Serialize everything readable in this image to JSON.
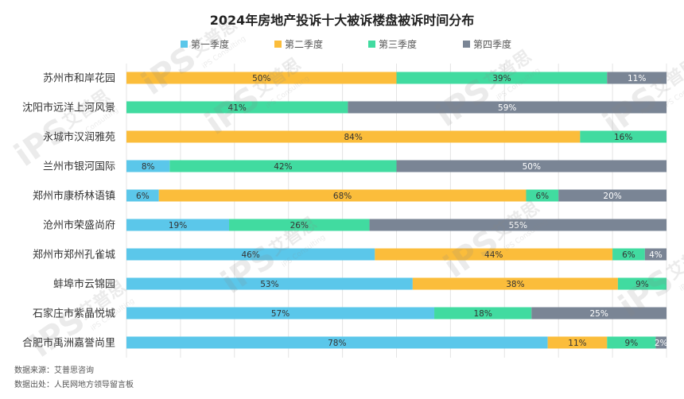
{
  "title": "2024年房地产投诉十大被诉楼盘被诉时间分布",
  "colors": {
    "q1": "#5bc7ea",
    "q2": "#fbbd3b",
    "q3": "#41dba0",
    "q4": "#7a8595"
  },
  "footer": {
    "source": "数据来源：艾普思咨询",
    "origin": "数据出处：人民网地方领导留言板"
  },
  "watermark": {
    "brand": "iPS",
    "name": "艾普思",
    "en": "iPS Consulting"
  },
  "chart_data": {
    "type": "bar",
    "orientation": "horizontal",
    "stacked": true,
    "unit": "%",
    "xlim": [
      0,
      100
    ],
    "grid": true,
    "legend_position": "top",
    "categories": [
      "苏州市和岸花园",
      "沈阳市远洋上河风景",
      "永城市汉润雅苑",
      "兰州市银河国际",
      "郑州市康桥林语镇",
      "沧州市荣盛尚府",
      "郑州市郑州孔雀城",
      "蚌埠市云锦园",
      "石家庄市紫晶悦城",
      "合肥市禹洲嘉誉尚里"
    ],
    "series": [
      {
        "name": "第一季度",
        "color": "#5bc7ea",
        "values": [
          0,
          0,
          0,
          8,
          6,
          19,
          46,
          53,
          57,
          78
        ],
        "labels": [
          "",
          "",
          "",
          "8%",
          "6%",
          "19%",
          "46%",
          "53%",
          "57%",
          "78%"
        ]
      },
      {
        "name": "第二季度",
        "color": "#fbbd3b",
        "values": [
          50,
          0,
          84,
          0,
          68,
          0,
          44,
          38,
          0,
          11
        ],
        "labels": [
          "50%",
          "",
          "84%",
          "",
          "68%",
          "",
          "44%",
          "38%",
          "",
          "11%"
        ]
      },
      {
        "name": "第三季度",
        "color": "#41dba0",
        "values": [
          39,
          41,
          16,
          42,
          6,
          26,
          6,
          9,
          18,
          9
        ],
        "labels": [
          "39%",
          "41%",
          "16%",
          "42%",
          "6%",
          "26%",
          "6%",
          "9%",
          "18%",
          "9%"
        ]
      },
      {
        "name": "第四季度",
        "color": "#7a8595",
        "values": [
          11,
          59,
          0,
          50,
          20,
          55,
          4,
          0,
          25,
          2
        ],
        "labels": [
          "11%",
          "59%",
          "",
          "50%",
          "20%",
          "55%",
          "4%",
          "",
          "25%",
          "2%"
        ]
      }
    ]
  }
}
